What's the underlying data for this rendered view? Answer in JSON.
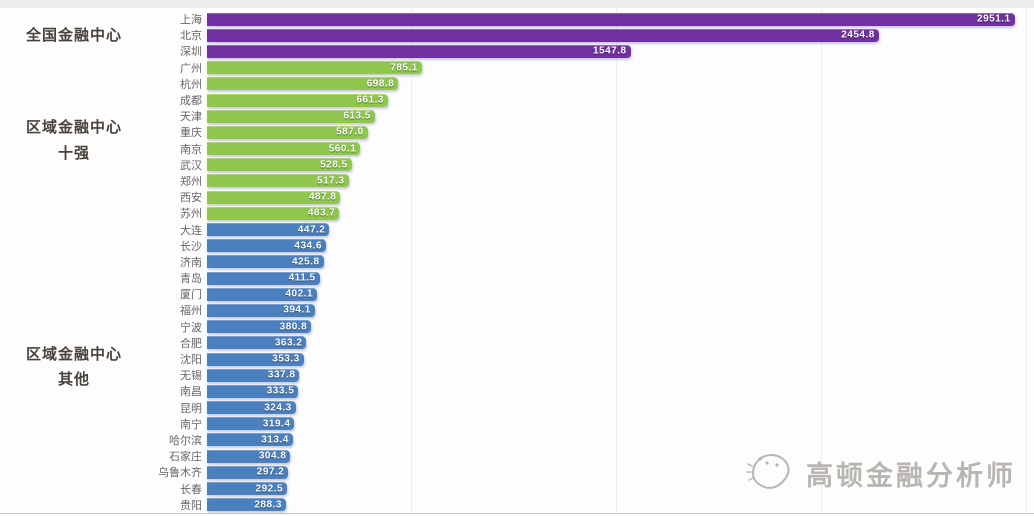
{
  "watermark": {
    "text": "高顿金融分析师",
    "icon": "sketch-smiley-logo"
  },
  "colors": {
    "national": "#7030a0",
    "regional_top10": "#8fc74e",
    "regional_other": "#4b80bf",
    "value_text": "#ffffff",
    "city_text": "#666666",
    "group_label_text": "#49423b",
    "watermark_text": "#b6b3ae"
  },
  "chart_data": {
    "type": "bar",
    "orientation": "horizontal",
    "title": "",
    "xlabel": "",
    "ylabel": "",
    "xlim": [
      0,
      3000
    ],
    "grid": "faint-vertical-lines",
    "legend_position": "none",
    "value_labels": "inside-bar-right",
    "groups": [
      {
        "label": "全国金融中心",
        "color": "#7030a0",
        "items": [
          {
            "city": "上海",
            "value": 2951.1
          },
          {
            "city": "北京",
            "value": 2454.8
          },
          {
            "city": "深圳",
            "value": 1547.8
          }
        ]
      },
      {
        "label": "区域金融中心\n十强",
        "color": "#8fc74e",
        "items": [
          {
            "city": "广州",
            "value": 785.1
          },
          {
            "city": "杭州",
            "value": 698.8
          },
          {
            "city": "成都",
            "value": 661.3
          },
          {
            "city": "天津",
            "value": 613.5
          },
          {
            "city": "重庆",
            "value": 587.0
          },
          {
            "city": "南京",
            "value": 560.1
          },
          {
            "city": "武汉",
            "value": 528.5
          },
          {
            "city": "郑州",
            "value": 517.3
          },
          {
            "city": "西安",
            "value": 487.8
          },
          {
            "city": "苏州",
            "value": 483.7
          }
        ]
      },
      {
        "label": "区域金融中心\n其他",
        "color": "#4b80bf",
        "items": [
          {
            "city": "大连",
            "value": 447.2
          },
          {
            "city": "长沙",
            "value": 434.6
          },
          {
            "city": "济南",
            "value": 425.8
          },
          {
            "city": "青岛",
            "value": 411.5
          },
          {
            "city": "厦门",
            "value": 402.1
          },
          {
            "city": "福州",
            "value": 394.1
          },
          {
            "city": "宁波",
            "value": 380.8
          },
          {
            "city": "合肥",
            "value": 363.2
          },
          {
            "city": "沈阳",
            "value": 353.3
          },
          {
            "city": "无锡",
            "value": 337.8
          },
          {
            "city": "南昌",
            "value": 333.5
          },
          {
            "city": "昆明",
            "value": 324.3
          },
          {
            "city": "南宁",
            "value": 319.4
          },
          {
            "city": "哈尔滨",
            "value": 313.4
          },
          {
            "city": "石家庄",
            "value": 304.8
          },
          {
            "city": "乌鲁木齐",
            "value": 297.2
          },
          {
            "city": "长春",
            "value": 292.5
          },
          {
            "city": "贵阳",
            "value": 288.3
          }
        ]
      }
    ]
  }
}
